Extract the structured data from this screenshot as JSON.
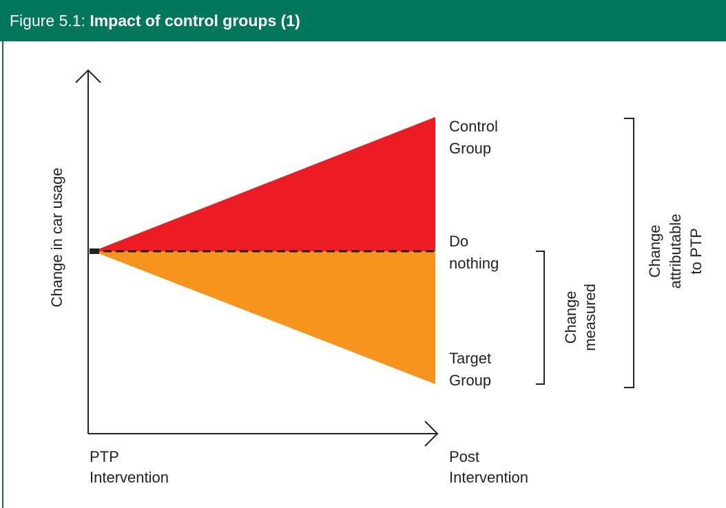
{
  "header": {
    "prefix": "Figure 5.1:",
    "title": "Impact of control groups (1)"
  },
  "axes": {
    "y_label": "Change in car usage",
    "x_start": [
      "PTP",
      "Intervention"
    ],
    "x_end": [
      "Post",
      "Intervention"
    ]
  },
  "groups": {
    "control": [
      "Control",
      "Group"
    ],
    "do_nothing": [
      "Do",
      "nothing"
    ],
    "target": [
      "Target",
      "Group"
    ]
  },
  "brackets": {
    "measured": [
      "Change",
      "measured"
    ],
    "attributable": [
      "Change",
      "attributable",
      "to PTP"
    ]
  }
}
